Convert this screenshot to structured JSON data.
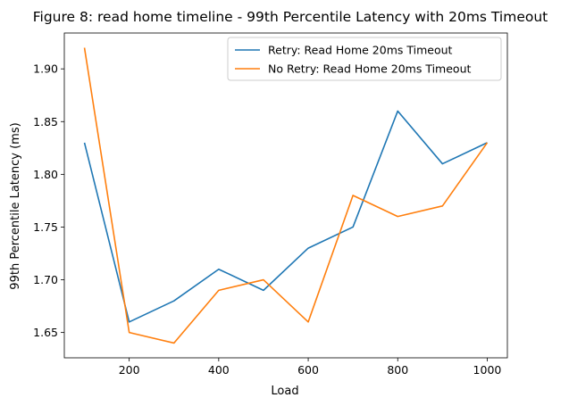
{
  "chart_data": {
    "type": "line",
    "title": "Figure 8: read home timeline - 99th Percentile Latency with 20ms Timeout",
    "xlabel": "Load",
    "ylabel": "99th Percentile Latency (ms)",
    "x": [
      100,
      200,
      300,
      400,
      500,
      600,
      700,
      800,
      900,
      1000
    ],
    "xlim": [
      55,
      1045
    ],
    "ylim": [
      1.626,
      1.934
    ],
    "xticks": [
      200,
      400,
      600,
      800,
      1000
    ],
    "xtick_labels": [
      "200",
      "400",
      "600",
      "800",
      "1000"
    ],
    "yticks": [
      1.65,
      1.7,
      1.75,
      1.8,
      1.85,
      1.9
    ],
    "ytick_labels": [
      "1.65",
      "1.70",
      "1.75",
      "1.80",
      "1.85",
      "1.90"
    ],
    "grid": false,
    "legend_position": "top-right",
    "series": [
      {
        "name": "Retry: Read Home 20ms Timeout",
        "color": "#1f77b4",
        "values": [
          1.83,
          1.66,
          1.68,
          1.71,
          1.69,
          1.73,
          1.75,
          1.86,
          1.81,
          1.83
        ]
      },
      {
        "name": "No Retry: Read Home 20ms Timeout",
        "color": "#ff7f0e",
        "values": [
          1.92,
          1.65,
          1.64,
          1.69,
          1.7,
          1.66,
          1.78,
          1.76,
          1.77,
          1.83
        ]
      }
    ]
  }
}
